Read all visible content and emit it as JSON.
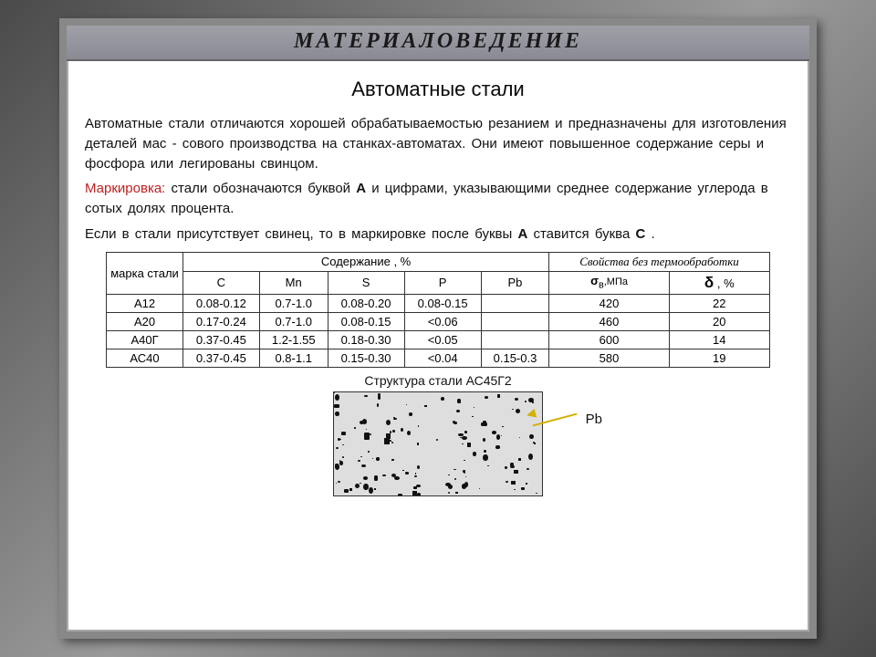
{
  "header": {
    "title": "МАТЕРИАЛОВЕДЕНИЕ"
  },
  "subtitle": "Автоматные стали",
  "paragraphs": {
    "p1": "Автоматные стали отличаются хорошей обрабатываемостью резанием и предназначены для  изготовления деталей мас - сового производства на  станках-автоматах. Они имеют повышенное содержание  серы  и  фосфора  или легированы  свинцом.",
    "marking_label": "Маркировка:",
    "p2a": " стали обозначаются буквой ",
    "p2b": "А",
    "p2c": " и цифрами, указывающими среднее содержание углерода в сотых долях процента.",
    "p3a": "Если в стали  присутствует  свинец,  то  в  маркировке  после буквы ",
    "p3b": "А",
    "p3c": "  ставится буква ",
    "p3d": "С",
    "p3e": "  ."
  },
  "table": {
    "h_marka": "марка стали",
    "h_content": "Содержание , %",
    "h_props": "Свойства без термообработки",
    "cols": {
      "c": "C",
      "mn": "Mn",
      "s": "S",
      "p": "P",
      "pb": "Pb",
      "sigma": "σ",
      "sigma_sub": "в",
      "sigma_unit": ",МПа",
      "delta": "δ",
      "delta_unit": " , %"
    },
    "rows": [
      {
        "marka": "А12",
        "c": "0.08-0.12",
        "mn": "0.7-1.0",
        "s": "0.08-0.20",
        "p": "0.08-0.15",
        "pb": "",
        "sigma": "420",
        "delta": "22"
      },
      {
        "marka": "А20",
        "c": "0.17-0.24",
        "mn": "0.7-1.0",
        "s": "0.08-0.15",
        "p": "<0.06",
        "pb": "",
        "sigma": "460",
        "delta": "20"
      },
      {
        "marka": "А40Г",
        "c": "0.37-0.45",
        "mn": "1.2-1.55",
        "s": "0.18-0.30",
        "p": "<0.05",
        "pb": "",
        "sigma": "600",
        "delta": "14"
      },
      {
        "marka": "АС40",
        "c": "0.37-0.45",
        "mn": "0.8-1.1",
        "s": "0.15-0.30",
        "p": "<0.04",
        "pb": "0.15-0.3",
        "sigma": "580",
        "delta": "19"
      }
    ]
  },
  "micro": {
    "caption": "Структура стали АС45Г2",
    "arrow_label": "Pb",
    "bg_color": "#dedede",
    "speck_color": "#111111",
    "speck_count": 140
  },
  "colors": {
    "frame_border": "#888888",
    "header_bg_top": "#a0a0a8",
    "header_bg_bottom": "#8a8a95",
    "red_text": "#c02020",
    "arrow_color": "#d4b000"
  }
}
